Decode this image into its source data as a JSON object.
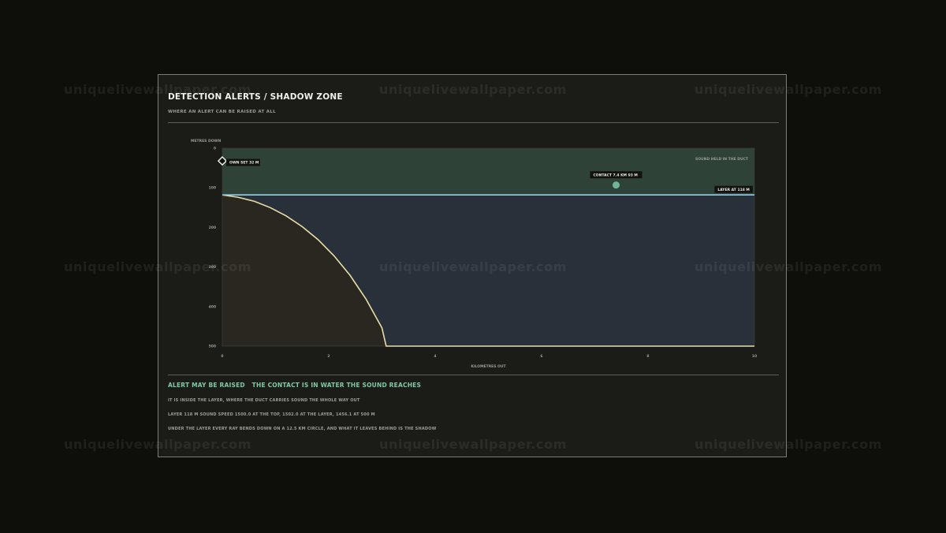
{
  "watermark": "uniquelivewallpaper.com",
  "panel": {
    "title": "DETECTION ALERTS / SHADOW ZONE",
    "subtitle": "WHERE AN ALERT CAN BE RAISED AT ALL"
  },
  "colors": {
    "background": "#0e0f0b",
    "panel": "#1b1c17",
    "duct_fill": "#2e4238",
    "reach_fill": "#28303a",
    "shadow_fill": "#29271f",
    "layer_line": "#8fd0ea",
    "ray_curve": "#e8dfa8",
    "contact": "#6fb59a",
    "accent_text": "#7fc9a6"
  },
  "chart_data": {
    "type": "area",
    "ylabel": "METRES DOWN",
    "xlabel": "KILOMETRES OUT",
    "xlim": [
      0,
      10
    ],
    "ylim": [
      0,
      500
    ],
    "y_inverted": true,
    "x_ticks": [
      "0",
      "2",
      "4",
      "6",
      "8",
      "10"
    ],
    "y_ticks": [
      "0",
      "100",
      "200",
      "300",
      "400",
      "500"
    ],
    "grid": false,
    "layer_depth": 118,
    "layer_label": "LAYER AT 118 M",
    "duct_label": "SOUND HELD IN THE DUCT",
    "own_set": {
      "x": 0,
      "y": 32,
      "label": "OWN SET 32 M"
    },
    "contact": {
      "x": 7.4,
      "y": 93,
      "label": "CONTACT 7.4 KM  93 M"
    },
    "shadow_boundary": {
      "x": [
        0,
        0.3,
        0.6,
        0.9,
        1.2,
        1.5,
        1.8,
        2.1,
        2.4,
        2.7,
        3.0,
        3.08,
        10
      ],
      "y": [
        118,
        124,
        134,
        150,
        171,
        198,
        231,
        272,
        321,
        381,
        454,
        500,
        500
      ]
    }
  },
  "verdict": {
    "status": "ALERT MAY BE RAISED",
    "reason": "THE CONTACT IS IN WATER THE SOUND REACHES"
  },
  "notes": [
    "IT IS INSIDE THE LAYER, WHERE THE DUCT CARRIES SOUND THE WHOLE WAY OUT",
    "LAYER 118 M   SOUND SPEED 1500.0 AT THE TOP, 1502.0 AT THE LAYER, 1456.1 AT 500 M",
    "UNDER THE LAYER EVERY RAY BENDS DOWN ON A 12.5 KM CIRCLE, AND WHAT IT LEAVES BEHIND IS THE SHADOW"
  ]
}
